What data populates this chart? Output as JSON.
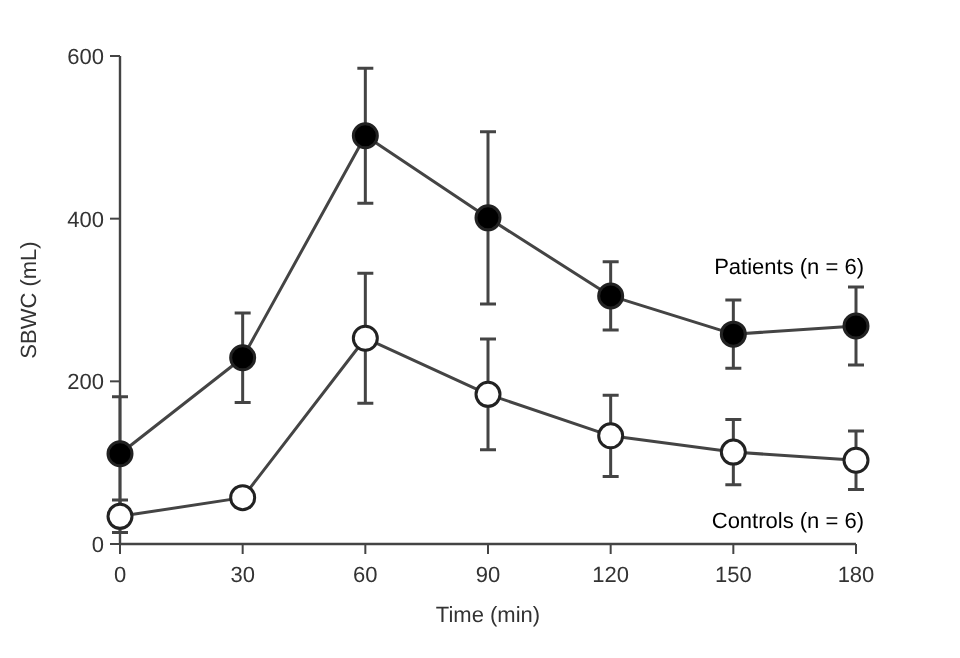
{
  "chart_data": {
    "type": "line",
    "xlabel": "Time (min)",
    "ylabel": "SBWC (mL)",
    "x": [
      0,
      30,
      60,
      90,
      120,
      150,
      180
    ],
    "xlim": [
      0,
      180
    ],
    "xticks": [
      0,
      30,
      60,
      90,
      120,
      150,
      180
    ],
    "ylim": [
      0,
      600
    ],
    "yticks": [
      0,
      200,
      400,
      600
    ],
    "marker": "circle",
    "grid": false,
    "series": [
      {
        "name": "Patients (n = 6)",
        "color": "#000000",
        "values": [
          111,
          229,
          502,
          401,
          305,
          258,
          268
        ],
        "errors": [
          70,
          55,
          83,
          106,
          42,
          42,
          48
        ]
      },
      {
        "name": "Controls (n = 6)",
        "color": "#ffffff",
        "values": [
          34,
          57,
          253,
          184,
          133,
          113,
          103
        ],
        "errors": [
          20,
          12,
          80,
          68,
          50,
          40,
          36
        ]
      }
    ]
  }
}
